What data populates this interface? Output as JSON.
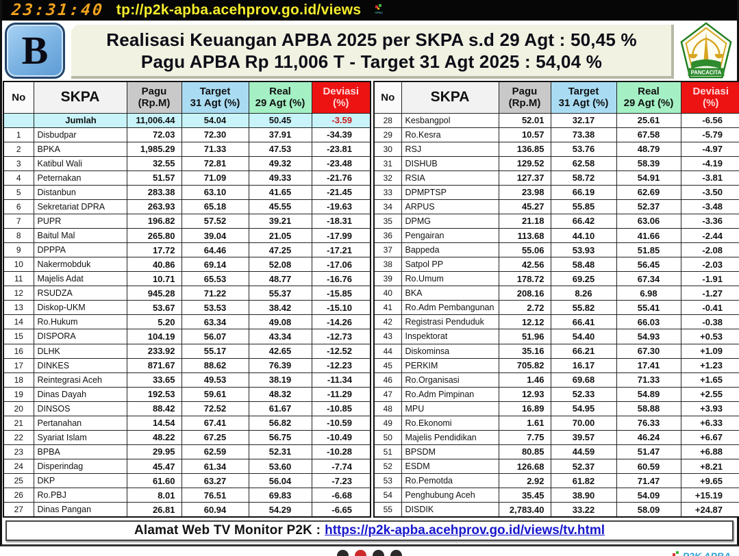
{
  "topbar": {
    "clock": "23:31:40",
    "url": "tp://p2k-apba.acehprov.go.id/views",
    "favicon_text": "APBA"
  },
  "header": {
    "left_logo_letter": "B",
    "title_line1": "Realisasi Keuangan APBA 2025 per SKPA s.d  29 Agt : 50,45 %",
    "title_line2": "Pagu APBA Rp 11,006 T  -  Target 31 Agt 2025 : 54,04 %",
    "right_logo_text": "PANCACITA"
  },
  "table": {
    "columns": [
      {
        "l1": "No",
        "l2": ""
      },
      {
        "l1": "SKPA",
        "l2": ""
      },
      {
        "l1": "Pagu",
        "l2": "(Rp.M)"
      },
      {
        "l1": "Target",
        "l2": "31 Agt (%)"
      },
      {
        "l1": "Real",
        "l2": "29 Agt (%)"
      },
      {
        "l1": "Deviasi",
        "l2": "(%)"
      }
    ],
    "summary": [
      "",
      "Jumlah",
      "11,006.44",
      "54.04",
      "50.45",
      "-3.59"
    ],
    "left_rows": [
      [
        "1",
        "Disbudpar",
        "72.03",
        "72.30",
        "37.91",
        "-34.39"
      ],
      [
        "2",
        "BPKA",
        "1,985.29",
        "71.33",
        "47.53",
        "-23.81"
      ],
      [
        "3",
        "Katibul Wali",
        "32.55",
        "72.81",
        "49.32",
        "-23.48"
      ],
      [
        "4",
        "Peternakan",
        "51.57",
        "71.09",
        "49.33",
        "-21.76"
      ],
      [
        "5",
        "Distanbun",
        "283.38",
        "63.10",
        "41.65",
        "-21.45"
      ],
      [
        "6",
        "Sekretariat DPRA",
        "263.93",
        "65.18",
        "45.55",
        "-19.63"
      ],
      [
        "7",
        "PUPR",
        "196.82",
        "57.52",
        "39.21",
        "-18.31"
      ],
      [
        "8",
        "Baitul Mal",
        "265.80",
        "39.04",
        "21.05",
        "-17.99"
      ],
      [
        "9",
        "DPPPA",
        "17.72",
        "64.46",
        "47.25",
        "-17.21"
      ],
      [
        "10",
        "Nakermobduk",
        "40.86",
        "69.14",
        "52.08",
        "-17.06"
      ],
      [
        "11",
        "Majelis Adat",
        "10.71",
        "65.53",
        "48.77",
        "-16.76"
      ],
      [
        "12",
        "RSUDZA",
        "945.28",
        "71.22",
        "55.37",
        "-15.85"
      ],
      [
        "13",
        "Diskop-UKM",
        "53.67",
        "53.53",
        "38.42",
        "-15.10"
      ],
      [
        "14",
        "Ro.Hukum",
        "5.20",
        "63.34",
        "49.08",
        "-14.26"
      ],
      [
        "15",
        "DISPORA",
        "104.19",
        "56.07",
        "43.34",
        "-12.73"
      ],
      [
        "16",
        "DLHK",
        "233.92",
        "55.17",
        "42.65",
        "-12.52"
      ],
      [
        "17",
        "DINKES",
        "871.67",
        "88.62",
        "76.39",
        "-12.23"
      ],
      [
        "18",
        "Reintegrasi Aceh",
        "33.65",
        "49.53",
        "38.19",
        "-11.34"
      ],
      [
        "19",
        "Dinas Dayah",
        "192.53",
        "59.61",
        "48.32",
        "-11.29"
      ],
      [
        "20",
        "DINSOS",
        "88.42",
        "72.52",
        "61.67",
        "-10.85"
      ],
      [
        "21",
        "Pertanahan",
        "14.54",
        "67.41",
        "56.82",
        "-10.59"
      ],
      [
        "22",
        "Syariat Islam",
        "48.22",
        "67.25",
        "56.75",
        "-10.49"
      ],
      [
        "23",
        "BPBA",
        "29.95",
        "62.59",
        "52.31",
        "-10.28"
      ],
      [
        "24",
        "Disperindag",
        "45.47",
        "61.34",
        "53.60",
        "-7.74"
      ],
      [
        "25",
        "DKP",
        "61.60",
        "63.27",
        "56.04",
        "-7.23"
      ],
      [
        "26",
        "Ro.PBJ",
        "8.01",
        "76.51",
        "69.83",
        "-6.68"
      ],
      [
        "27",
        "Dinas Pangan",
        "26.81",
        "60.94",
        "54.29",
        "-6.65"
      ]
    ],
    "right_rows": [
      [
        "28",
        "Kesbangpol",
        "52.01",
        "32.17",
        "25.61",
        "-6.56"
      ],
      [
        "29",
        "Ro.Kesra",
        "10.57",
        "73.38",
        "67.58",
        "-5.79"
      ],
      [
        "30",
        "RSJ",
        "136.85",
        "53.76",
        "48.79",
        "-4.97"
      ],
      [
        "31",
        "DISHUB",
        "129.52",
        "62.58",
        "58.39",
        "-4.19"
      ],
      [
        "32",
        "RSIA",
        "127.37",
        "58.72",
        "54.91",
        "-3.81"
      ],
      [
        "33",
        "DPMPTSP",
        "23.98",
        "66.19",
        "62.69",
        "-3.50"
      ],
      [
        "34",
        "ARPUS",
        "45.27",
        "55.85",
        "52.37",
        "-3.48"
      ],
      [
        "35",
        "DPMG",
        "21.18",
        "66.42",
        "63.06",
        "-3.36"
      ],
      [
        "36",
        "Pengairan",
        "113.68",
        "44.10",
        "41.66",
        "-2.44"
      ],
      [
        "37",
        "Bappeda",
        "55.06",
        "53.93",
        "51.85",
        "-2.08"
      ],
      [
        "38",
        "Satpol PP",
        "42.56",
        "58.48",
        "56.45",
        "-2.03"
      ],
      [
        "39",
        "Ro.Umum",
        "178.72",
        "69.25",
        "67.34",
        "-1.91"
      ],
      [
        "40",
        "BKA",
        "208.16",
        "8.26",
        "6.98",
        "-1.27"
      ],
      [
        "41",
        "Ro.Adm Pembangunan",
        "2.72",
        "55.82",
        "55.41",
        "-0.41"
      ],
      [
        "42",
        "Registrasi Penduduk",
        "12.12",
        "66.41",
        "66.03",
        "-0.38"
      ],
      [
        "43",
        "Inspektorat",
        "51.96",
        "54.40",
        "54.93",
        "+0.53"
      ],
      [
        "44",
        "Diskominsa",
        "35.16",
        "66.21",
        "67.30",
        "+1.09"
      ],
      [
        "45",
        "PERKIM",
        "705.82",
        "16.17",
        "17.41",
        "+1.23"
      ],
      [
        "46",
        "Ro.Organisasi",
        "1.46",
        "69.68",
        "71.33",
        "+1.65"
      ],
      [
        "47",
        "Ro.Adm Pimpinan",
        "12.93",
        "52.33",
        "54.89",
        "+2.55"
      ],
      [
        "48",
        "MPU",
        "16.89",
        "54.95",
        "58.88",
        "+3.93"
      ],
      [
        "49",
        "Ro.Ekonomi",
        "1.61",
        "70.00",
        "76.33",
        "+6.33"
      ],
      [
        "50",
        "Majelis Pendidikan",
        "7.75",
        "39.57",
        "46.24",
        "+6.67"
      ],
      [
        "51",
        "BPSDM",
        "80.85",
        "44.59",
        "51.47",
        "+6.88"
      ],
      [
        "52",
        "ESDM",
        "126.68",
        "52.37",
        "60.59",
        "+8.21"
      ],
      [
        "53",
        "Ro.Pemotda",
        "2.92",
        "61.82",
        "71.47",
        "+9.65"
      ],
      [
        "54",
        "Penghubung Aceh",
        "35.45",
        "38.90",
        "54.09",
        "+15.19"
      ],
      [
        "55",
        "DISDIK",
        "2,783.40",
        "33.22",
        "58.09",
        "+24.87"
      ]
    ]
  },
  "footer": {
    "label": "Alamat Web TV Monitor P2K :",
    "link": "https://p2k-apba.acehprov.go.id/views/tv.html"
  },
  "carousel": {
    "dot_count": 4,
    "active_index": 1
  },
  "watermark": {
    "text": "P2K APBA"
  }
}
